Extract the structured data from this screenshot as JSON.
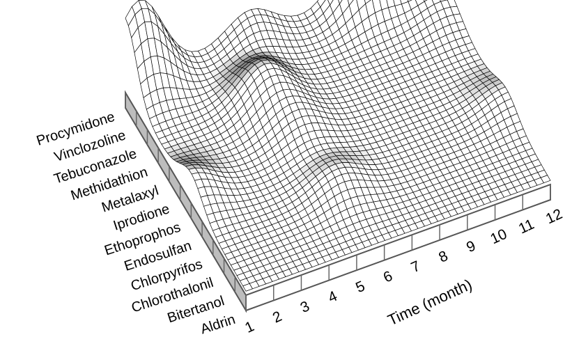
{
  "chart_data": {
    "type": "surface",
    "title": "",
    "xlabel": "Time (month)",
    "ylabel": "",
    "x_ticks": [
      "1",
      "2",
      "3",
      "4",
      "5",
      "6",
      "7",
      "8",
      "9",
      "10",
      "11",
      "12"
    ],
    "y_ticks": [
      "Aldrin",
      "Bitertanol",
      "Chlorothalonil",
      "Chlorpyrifos",
      "Endosulfan",
      "Ethoprophos",
      "Iprodione",
      "Metalaxyl",
      "Methidathion",
      "Tebuconazole",
      "Vinclozoline",
      "Procymidone"
    ],
    "z_relative_peaks": [
      {
        "pesticide": "Procymidone",
        "month": 1.5,
        "relative_height": 1.0
      },
      {
        "pesticide": "Procymidone",
        "month": 9.5,
        "relative_height": 0.85
      },
      {
        "pesticide": "Procymidone",
        "month": 5.5,
        "relative_height": 0.35
      },
      {
        "pesticide": "Procymidone",
        "month": 12,
        "relative_height": 0.25
      },
      {
        "pesticide": "Methidathion",
        "month": 4.8,
        "relative_height": 0.45
      },
      {
        "pesticide": "Tebuconazole",
        "month": 11.5,
        "relative_height": 0.2
      },
      {
        "pesticide": "Ethoprophos",
        "month": 1.0,
        "relative_height": 0.3
      },
      {
        "pesticide": "Iprodione",
        "month": 5.3,
        "relative_height": 0.25
      },
      {
        "pesticide": "Chlorpyrifos",
        "month": 5.5,
        "relative_height": 0.25
      },
      {
        "pesticide": "Endosulfan",
        "month": 12,
        "relative_height": 0.2
      }
    ],
    "colors": {
      "surface": "#ffffff",
      "wire": "#000000",
      "base": "#f2f2f2",
      "shading": "#000000"
    }
  }
}
